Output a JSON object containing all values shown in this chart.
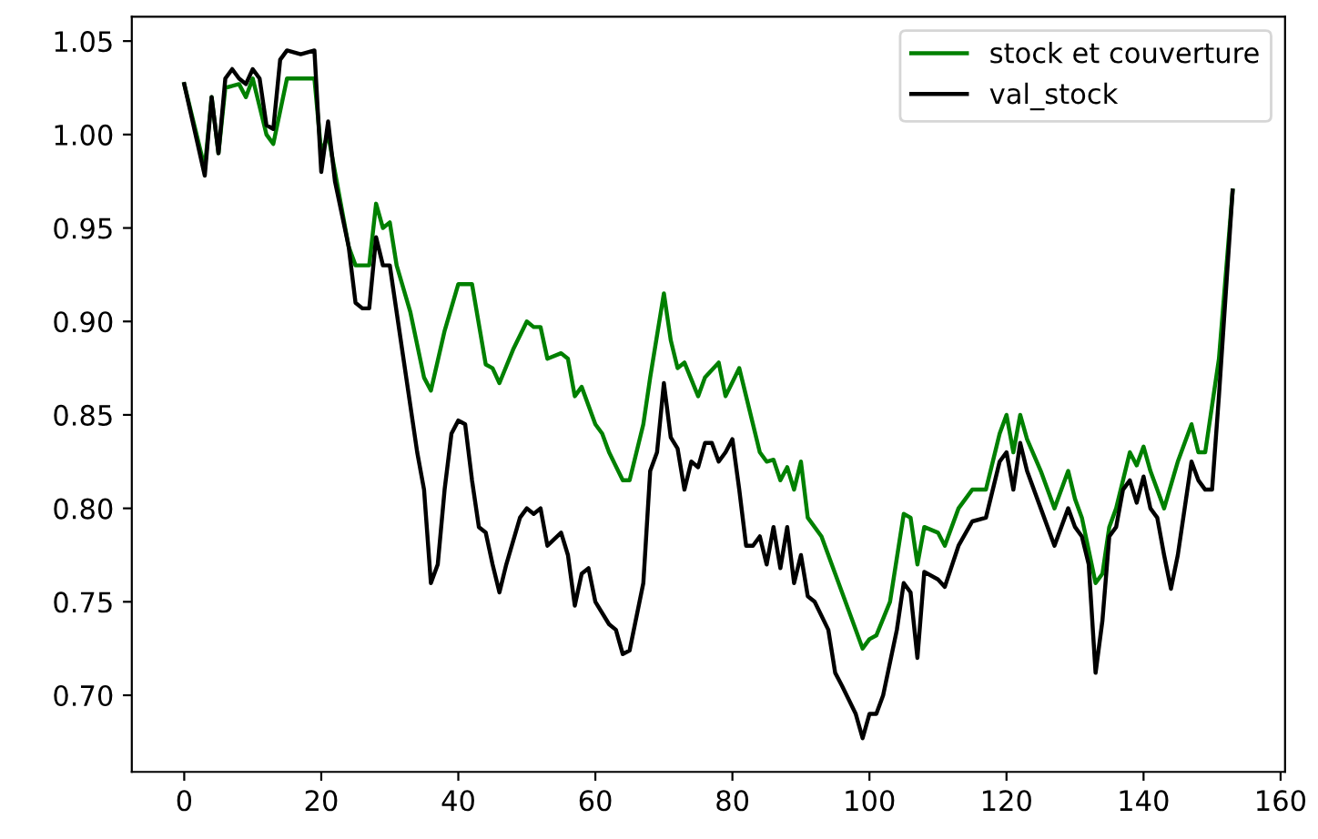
{
  "chart_data": {
    "type": "line",
    "xlim": [
      -7.65,
      160.65
    ],
    "ylim": [
      0.659,
      1.063
    ],
    "xticks": [
      0,
      20,
      40,
      60,
      80,
      100,
      120,
      140,
      160
    ],
    "yticks": [
      {
        "value": 0.7,
        "label": "0.70"
      },
      {
        "value": 0.75,
        "label": "0.75"
      },
      {
        "value": 0.8,
        "label": "0.80"
      },
      {
        "value": 0.85,
        "label": "0.85"
      },
      {
        "value": 0.9,
        "label": "0.90"
      },
      {
        "value": 0.95,
        "label": "0.95"
      },
      {
        "value": 1.0,
        "label": "1.00"
      },
      {
        "value": 1.05,
        "label": "1.05"
      }
    ],
    "grid": false,
    "legend": "top right",
    "marker": "none",
    "line_style": "solid",
    "series": [
      {
        "name": "stock et couverture",
        "color": "#008000",
        "x": [
          0,
          3,
          4,
          5,
          6,
          8,
          9,
          10,
          12,
          13,
          15,
          19,
          20,
          21,
          22,
          24,
          25,
          27,
          28,
          29,
          30,
          31,
          33,
          35,
          36,
          38,
          40,
          42,
          44,
          45,
          46,
          48,
          50,
          51,
          52,
          53,
          55,
          56,
          57,
          58,
          60,
          61,
          62,
          64,
          65,
          67,
          68,
          70,
          71,
          72,
          73,
          75,
          76,
          78,
          79,
          81,
          82,
          84,
          85,
          86,
          87,
          88,
          89,
          90,
          91,
          93,
          95,
          97,
          99,
          100,
          101,
          103,
          105,
          106,
          107,
          108,
          110,
          111,
          113,
          115,
          117,
          119,
          120,
          121,
          122,
          123,
          125,
          127,
          129,
          130,
          131,
          133,
          134,
          135,
          136,
          138,
          139,
          140,
          141,
          142,
          143,
          145,
          147,
          148,
          149,
          151,
          153
        ],
        "values": [
          1.027,
          0.982,
          1.02,
          0.99,
          1.025,
          1.027,
          1.02,
          1.03,
          1.0,
          0.995,
          1.03,
          1.03,
          0.99,
          1.0,
          0.98,
          0.94,
          0.93,
          0.93,
          0.963,
          0.95,
          0.953,
          0.93,
          0.905,
          0.87,
          0.863,
          0.895,
          0.92,
          0.92,
          0.877,
          0.875,
          0.867,
          0.885,
          0.9,
          0.897,
          0.897,
          0.88,
          0.883,
          0.88,
          0.86,
          0.865,
          0.845,
          0.84,
          0.83,
          0.815,
          0.815,
          0.845,
          0.87,
          0.915,
          0.89,
          0.875,
          0.878,
          0.86,
          0.87,
          0.878,
          0.86,
          0.875,
          0.86,
          0.83,
          0.825,
          0.826,
          0.815,
          0.822,
          0.81,
          0.825,
          0.795,
          0.785,
          0.765,
          0.745,
          0.725,
          0.73,
          0.732,
          0.75,
          0.797,
          0.795,
          0.77,
          0.79,
          0.787,
          0.78,
          0.8,
          0.81,
          0.81,
          0.84,
          0.85,
          0.83,
          0.85,
          0.837,
          0.82,
          0.8,
          0.82,
          0.805,
          0.795,
          0.76,
          0.765,
          0.79,
          0.8,
          0.83,
          0.823,
          0.833,
          0.82,
          0.81,
          0.8,
          0.825,
          0.845,
          0.83,
          0.83,
          0.88,
          0.97
        ]
      },
      {
        "name": "val_stock",
        "color": "#000000",
        "x": [
          0,
          3,
          4,
          5,
          6,
          7,
          8,
          9,
          10,
          11,
          12,
          13,
          14,
          15,
          17,
          19,
          20,
          21,
          22,
          24,
          25,
          26,
          27,
          28,
          29,
          30,
          32,
          34,
          35,
          36,
          37,
          38,
          39,
          40,
          41,
          42,
          43,
          44,
          45,
          46,
          47,
          49,
          50,
          51,
          52,
          53,
          55,
          56,
          57,
          58,
          59,
          60,
          62,
          63,
          64,
          65,
          67,
          68,
          69,
          70,
          71,
          72,
          73,
          74,
          75,
          76,
          77,
          78,
          79,
          80,
          81,
          82,
          83,
          84,
          85,
          86,
          87,
          88,
          89,
          90,
          91,
          92,
          94,
          95,
          96,
          98,
          99,
          100,
          101,
          102,
          104,
          105,
          106,
          107,
          108,
          110,
          111,
          113,
          115,
          117,
          119,
          120,
          121,
          122,
          123,
          125,
          127,
          129,
          130,
          131,
          132,
          133,
          134,
          135,
          136,
          137,
          138,
          139,
          140,
          141,
          142,
          143,
          144,
          145,
          147,
          148,
          149,
          150,
          151,
          153
        ],
        "values": [
          1.027,
          0.978,
          1.02,
          0.99,
          1.03,
          1.035,
          1.03,
          1.027,
          1.035,
          1.03,
          1.005,
          1.003,
          1.04,
          1.045,
          1.043,
          1.045,
          0.98,
          1.007,
          0.975,
          0.94,
          0.91,
          0.907,
          0.907,
          0.945,
          0.93,
          0.93,
          0.88,
          0.83,
          0.81,
          0.76,
          0.77,
          0.81,
          0.84,
          0.847,
          0.845,
          0.815,
          0.79,
          0.787,
          0.77,
          0.755,
          0.77,
          0.795,
          0.8,
          0.797,
          0.8,
          0.78,
          0.787,
          0.775,
          0.748,
          0.765,
          0.768,
          0.75,
          0.738,
          0.735,
          0.722,
          0.724,
          0.76,
          0.82,
          0.83,
          0.867,
          0.838,
          0.832,
          0.81,
          0.825,
          0.822,
          0.835,
          0.835,
          0.825,
          0.83,
          0.837,
          0.81,
          0.78,
          0.78,
          0.785,
          0.77,
          0.79,
          0.768,
          0.79,
          0.76,
          0.775,
          0.753,
          0.75,
          0.735,
          0.712,
          0.705,
          0.69,
          0.677,
          0.69,
          0.69,
          0.7,
          0.735,
          0.76,
          0.755,
          0.72,
          0.766,
          0.762,
          0.758,
          0.78,
          0.793,
          0.795,
          0.825,
          0.83,
          0.81,
          0.835,
          0.82,
          0.8,
          0.78,
          0.8,
          0.79,
          0.785,
          0.77,
          0.712,
          0.74,
          0.785,
          0.79,
          0.81,
          0.815,
          0.803,
          0.817,
          0.8,
          0.795,
          0.775,
          0.757,
          0.775,
          0.825,
          0.815,
          0.81,
          0.81,
          0.86,
          0.97
        ]
      }
    ]
  }
}
